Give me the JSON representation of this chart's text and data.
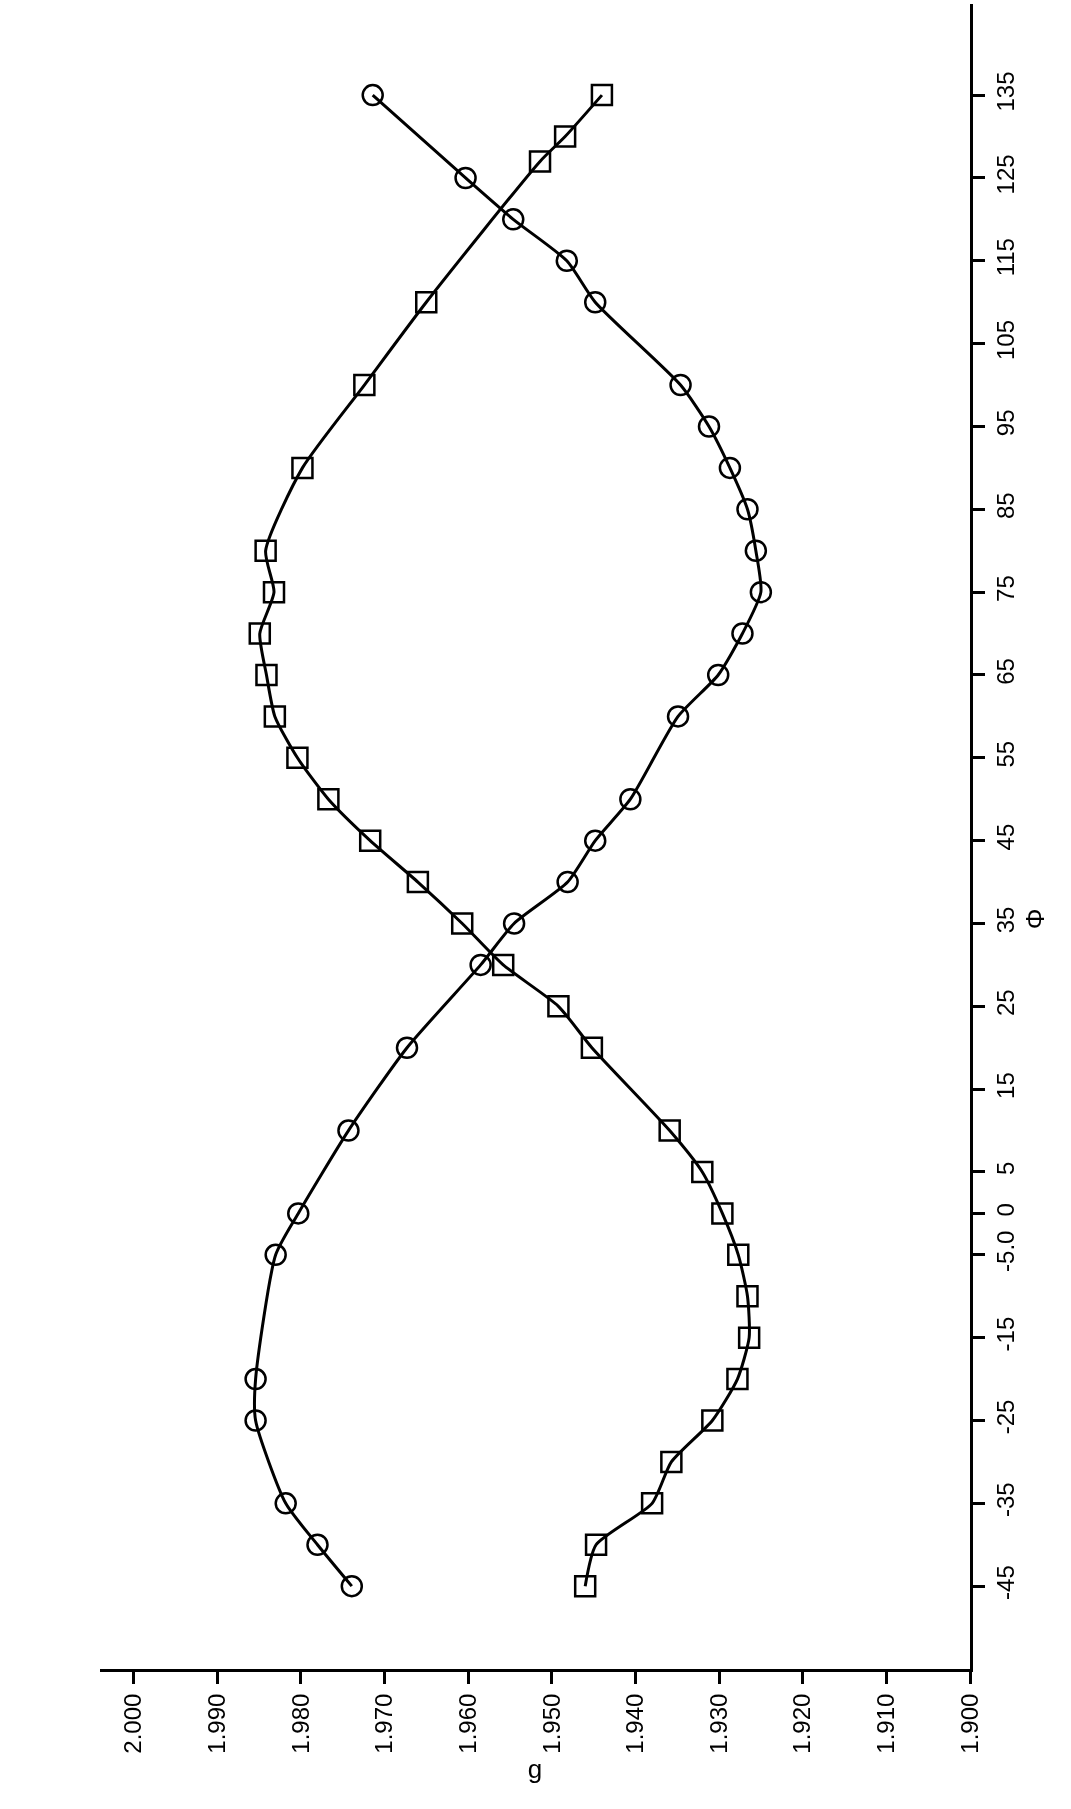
{
  "chart_data": {
    "type": "line",
    "orientation": "horizontal",
    "xlabel": "g",
    "ylabel": "Φ",
    "xlim": [
      2.004,
      1.9
    ],
    "xticks": [
      {
        "value": 2.0,
        "label": "2.000"
      },
      {
        "value": 1.99,
        "label": "1.990"
      },
      {
        "value": 1.98,
        "label": "1.980"
      },
      {
        "value": 1.97,
        "label": "1.970"
      },
      {
        "value": 1.96,
        "label": "1.960"
      },
      {
        "value": 1.95,
        "label": "1.950"
      },
      {
        "value": 1.94,
        "label": "1.940"
      },
      {
        "value": 1.93,
        "label": "1.930"
      },
      {
        "value": 1.92,
        "label": "1.920"
      },
      {
        "value": 1.91,
        "label": "1.910"
      },
      {
        "value": 1.9,
        "label": "1.900"
      }
    ],
    "ylim": [
      -55,
      146
    ],
    "yticks": [
      -45,
      -35,
      -25,
      -15,
      {
        "value": -5,
        "label": "-5.0"
      },
      0,
      5,
      15,
      25,
      35,
      45,
      55,
      65,
      75,
      85,
      95,
      105,
      115,
      125,
      135
    ],
    "series": [
      {
        "color": "#000000",
        "marker": "circle",
        "x": [
          -45,
          -40,
          -35,
          -25,
          -20,
          -5,
          0,
          10,
          20,
          30,
          35,
          40,
          45,
          50,
          60,
          65,
          70,
          75,
          80,
          85,
          90,
          95,
          100,
          110,
          115,
          120,
          125,
          135
        ],
        "values": [
          1.9739,
          1.978,
          1.9818,
          1.9854,
          1.9854,
          1.983,
          1.9803,
          1.9743,
          1.9673,
          1.9585,
          1.9545,
          1.9481,
          1.9448,
          1.9406,
          1.9349,
          1.9301,
          1.9272,
          1.925,
          1.9256,
          1.9266,
          1.9287,
          1.9312,
          1.9346,
          1.9448,
          1.9482,
          1.9546,
          1.9603,
          1.9714
        ]
      },
      {
        "color": "#000000",
        "marker": "square",
        "x": [
          -45,
          -40,
          -35,
          -30,
          -25,
          -20,
          -15,
          -10,
          -5,
          0,
          5,
          10,
          20,
          25,
          30,
          35,
          40,
          45,
          50,
          55,
          60,
          65,
          70,
          75,
          80,
          90,
          100,
          110,
          127,
          130,
          135
        ],
        "values": [
          1.946,
          1.9447,
          1.938,
          1.9357,
          1.9308,
          1.9278,
          1.9264,
          1.9266,
          1.9277,
          1.9296,
          1.932,
          1.9359,
          1.9452,
          1.9492,
          1.9558,
          1.9607,
          1.966,
          1.9717,
          1.9767,
          1.9804,
          1.9831,
          1.9841,
          1.9849,
          1.9832,
          1.9842,
          1.9798,
          1.9724,
          1.965,
          1.9514,
          1.9484,
          1.944
        ]
      }
    ]
  }
}
